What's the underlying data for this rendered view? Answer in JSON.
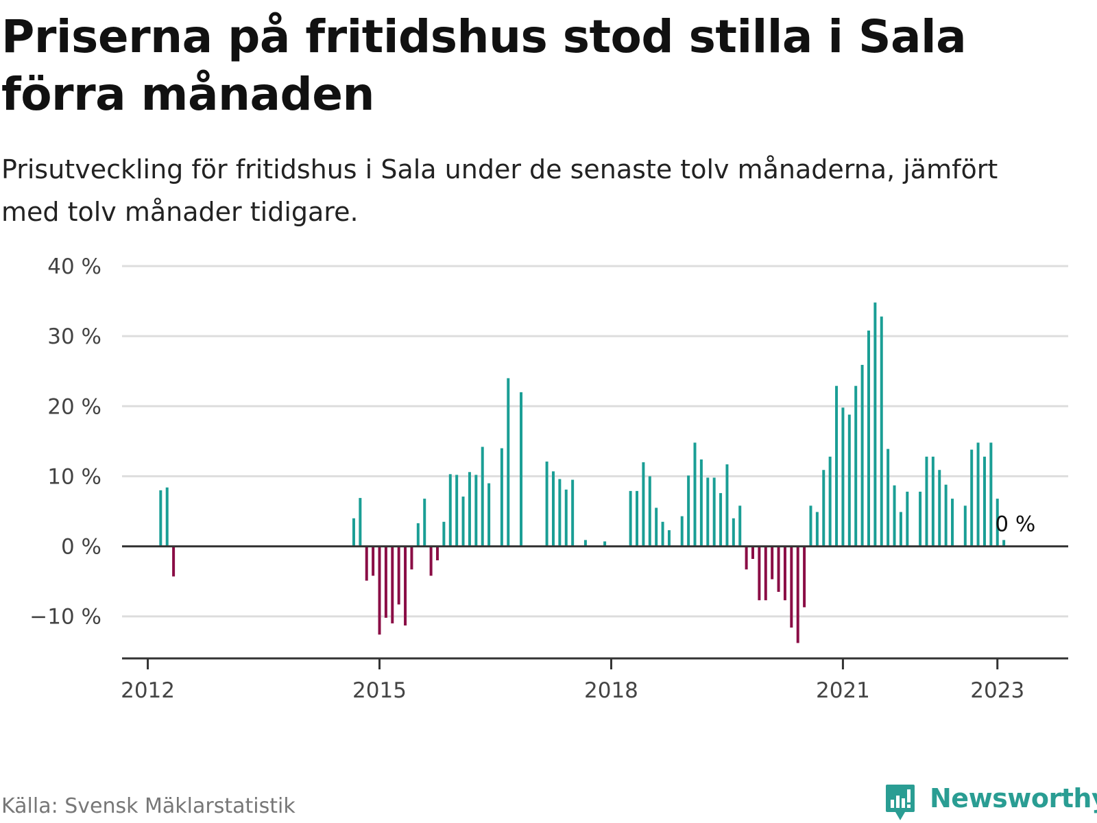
{
  "title": "Priserna på fritidshus stod stilla i Sala förra månaden",
  "subtitle": "Prisutveckling för fritidshus i Sala under de senaste tolv månaderna, jämfört med tolv månader tidigare.",
  "source": "Källa: Svensk Mäklarstatistik",
  "brand": {
    "name": "Newsworthy",
    "icon": "newsworthy-logo-icon",
    "color": "#2a9d93"
  },
  "colors": {
    "positive": "#1a9e95",
    "negative": "#8a0d45",
    "grid": "#dddddd",
    "axis": "#333333"
  },
  "chart_data": {
    "type": "bar",
    "title": "Priserna på fritidshus stod stilla i Sala förra månaden",
    "subtitle": "Prisutveckling för fritidshus i Sala under de senaste tolv månaderna, jämfört med tolv månader tidigare.",
    "xlabel": "",
    "ylabel": "",
    "ylim": [
      -16,
      40
    ],
    "yticks": [
      -10,
      0,
      10,
      20,
      30,
      40
    ],
    "ytick_labels": [
      "−10 %",
      "0 %",
      "10 %",
      "20 %",
      "30 %",
      "40 %"
    ],
    "xlim": [
      "2011-09",
      "2023-12"
    ],
    "xticks": [
      "2012-01",
      "2015-01",
      "2018-01",
      "2021-01",
      "2023-01"
    ],
    "xtick_labels": [
      "2012",
      "2015",
      "2018",
      "2021",
      "2023"
    ],
    "grid": true,
    "legend": "none",
    "annotation": {
      "text": "0 %",
      "x": "2022-12",
      "y": 0
    },
    "series": [
      {
        "values": [
          [
            "2012-03",
            8
          ],
          [
            "2012-04",
            8.4
          ],
          [
            "2012-05",
            -4.3
          ],
          [
            "2014-09",
            4
          ],
          [
            "2014-10",
            6.9
          ],
          [
            "2014-11",
            -4.9
          ],
          [
            "2014-12",
            -4.2
          ],
          [
            "2015-01",
            -12.6
          ],
          [
            "2015-02",
            -10.2
          ],
          [
            "2015-03",
            -11
          ],
          [
            "2015-04",
            -8.3
          ],
          [
            "2015-05",
            -11.3
          ],
          [
            "2015-06",
            -3.3
          ],
          [
            "2015-07",
            3.3
          ],
          [
            "2015-08",
            6.8
          ],
          [
            "2015-09",
            -4.2
          ],
          [
            "2015-10",
            -2
          ],
          [
            "2015-11",
            3.5
          ],
          [
            "2015-12",
            10.3
          ],
          [
            "2016-01",
            10.2
          ],
          [
            "2016-02",
            7.1
          ],
          [
            "2016-03",
            10.6
          ],
          [
            "2016-04",
            10.2
          ],
          [
            "2016-05",
            14.2
          ],
          [
            "2016-06",
            9
          ],
          [
            "2016-08",
            14
          ],
          [
            "2016-09",
            24
          ],
          [
            "2016-11",
            22
          ],
          [
            "2017-03",
            12.1
          ],
          [
            "2017-04",
            10.7
          ],
          [
            "2017-05",
            9.6
          ],
          [
            "2017-06",
            8.1
          ],
          [
            "2017-07",
            9.5
          ],
          [
            "2017-09",
            0.9
          ],
          [
            "2017-12",
            0.7
          ],
          [
            "2018-04",
            7.9
          ],
          [
            "2018-05",
            7.9
          ],
          [
            "2018-06",
            12
          ],
          [
            "2018-07",
            10
          ],
          [
            "2018-08",
            5.5
          ],
          [
            "2018-09",
            3.5
          ],
          [
            "2018-10",
            2.3
          ],
          [
            "2018-12",
            4.3
          ],
          [
            "2019-01",
            10.1
          ],
          [
            "2019-02",
            14.8
          ],
          [
            "2019-03",
            12.4
          ],
          [
            "2019-04",
            9.8
          ],
          [
            "2019-05",
            9.8
          ],
          [
            "2019-06",
            7.6
          ],
          [
            "2019-07",
            11.7
          ],
          [
            "2019-08",
            4
          ],
          [
            "2019-09",
            5.8
          ],
          [
            "2019-10",
            -3.3
          ],
          [
            "2019-11",
            -1.8
          ],
          [
            "2019-12",
            -7.7
          ],
          [
            "2020-01",
            -7.7
          ],
          [
            "2020-02",
            -4.7
          ],
          [
            "2020-03",
            -6.5
          ],
          [
            "2020-04",
            -7.7
          ],
          [
            "2020-05",
            -11.6
          ],
          [
            "2020-06",
            -13.8
          ],
          [
            "2020-07",
            -8.7
          ],
          [
            "2020-08",
            5.8
          ],
          [
            "2020-09",
            4.9
          ],
          [
            "2020-10",
            10.9
          ],
          [
            "2020-11",
            12.8
          ],
          [
            "2020-12",
            22.9
          ],
          [
            "2021-01",
            19.8
          ],
          [
            "2021-02",
            18.8
          ],
          [
            "2021-03",
            22.9
          ],
          [
            "2021-04",
            25.9
          ],
          [
            "2021-05",
            30.8
          ],
          [
            "2021-06",
            34.8
          ],
          [
            "2021-07",
            32.8
          ],
          [
            "2021-08",
            13.9
          ],
          [
            "2021-09",
            8.7
          ],
          [
            "2021-10",
            4.9
          ],
          [
            "2021-11",
            7.8
          ],
          [
            "2022-01",
            7.8
          ],
          [
            "2022-02",
            12.8
          ],
          [
            "2022-03",
            12.8
          ],
          [
            "2022-04",
            10.9
          ],
          [
            "2022-05",
            8.8
          ],
          [
            "2022-06",
            6.8
          ],
          [
            "2022-08",
            5.8
          ],
          [
            "2022-09",
            13.8
          ],
          [
            "2022-10",
            14.8
          ],
          [
            "2022-11",
            12.8
          ],
          [
            "2022-12",
            14.8
          ],
          [
            "2023-01",
            6.8
          ],
          [
            "2023-02",
            0.9
          ]
        ]
      }
    ]
  }
}
